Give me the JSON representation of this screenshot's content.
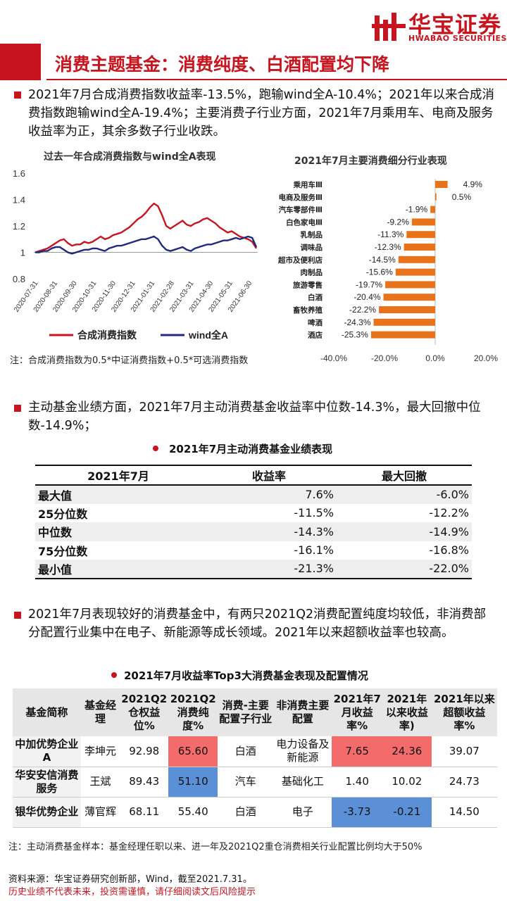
{
  "header": {
    "logo_cn": "华宝证券",
    "logo_en": "HWABAO SECURITIES",
    "title": "消费主题基金：消费纯度、白酒配置均下降"
  },
  "para1": "2021年7月合成消费指数收益率-13.5%，跑输wind全A-10.4%；2021年以来合成消费指数跑输wind全A-19.4%；主要消费子行业方面，2021年7月乘用车、电商及服务收益率为正，其余多数子行业收跌。",
  "para2": "主动基金业绩方面，2021年7月主动消费基金收益率中位数-14.3%，最大回撤中位数-14.9%；",
  "para3": "2021年7月表现较好的消费基金中，有两只2021Q2消费配置纯度均较低，非消费部分配置行业集中在电子、新能源等成长领域。2021年以来超额收益率也较高。",
  "line_chart_title": "过去一年合成消费指数与wind全A表现",
  "bar_chart_title": "2021年7月主要消费细分行业表现",
  "note1": "注：合成消费指数为0.5*中证消费指数+0.5*可选消费指数",
  "colors": {
    "red": "#c8141e",
    "navy": "#1f2a80",
    "orange": "#e8731b"
  },
  "chart_data": [
    {
      "type": "line",
      "title": "过去一年合成消费指数与wind全A表现",
      "ylim": [
        0.8,
        1.6
      ],
      "yticks": [
        "0.8",
        "1",
        "1.2",
        "1.4",
        "1.6"
      ],
      "xticks": [
        "2020-07-31",
        "2020-08-31",
        "2020-09-30",
        "2020-10-31",
        "2020-11-30",
        "2020-12-31",
        "2021-01-31",
        "2021-02-28",
        "2021-03-31",
        "2021-04-30",
        "2021-05-31",
        "2021-06-30"
      ],
      "series": [
        {
          "name": "合成消费指数",
          "color": "#c8141e",
          "values": [
            1.0,
            1.01,
            1.02,
            1.03,
            1.05,
            1.07,
            1.09,
            1.1,
            1.07,
            1.05,
            1.06,
            1.06,
            1.08,
            1.07,
            1.08,
            1.1,
            1.12,
            1.1,
            1.11,
            1.13,
            1.14,
            1.15,
            1.17,
            1.19,
            1.22,
            1.25,
            1.27,
            1.3,
            1.34,
            1.37,
            1.35,
            1.28,
            1.2,
            1.18,
            1.2,
            1.22,
            1.24,
            1.21,
            1.2,
            1.22,
            1.23,
            1.25,
            1.26,
            1.24,
            1.22,
            1.19,
            1.17,
            1.15,
            1.16,
            1.14,
            1.12,
            1.11,
            1.1,
            1.08,
            1.03
          ]
        },
        {
          "name": "wind全A",
          "color": "#1f2a80",
          "values": [
            1.0,
            1.0,
            1.01,
            1.01,
            1.03,
            1.04,
            1.04,
            1.02,
            1.0,
            0.99,
            1.0,
            1.01,
            1.02,
            1.02,
            1.03,
            1.03,
            1.02,
            1.01,
            1.03,
            1.04,
            1.05,
            1.05,
            1.06,
            1.07,
            1.08,
            1.09,
            1.1,
            1.1,
            1.11,
            1.12,
            1.1,
            1.05,
            1.02,
            1.01,
            1.02,
            1.03,
            1.04,
            1.02,
            1.01,
            1.03,
            1.04,
            1.05,
            1.06,
            1.06,
            1.07,
            1.08,
            1.09,
            1.09,
            1.1,
            1.11,
            1.1,
            1.11,
            1.12,
            1.11,
            1.04
          ]
        }
      ]
    },
    {
      "type": "bar",
      "orientation": "horizontal",
      "title": "2021年7月主要消费细分行业表现",
      "categories": [
        "乘用车Ⅲ",
        "电商及服务Ⅲ",
        "汽车零部件Ⅲ",
        "白色家电Ⅲ",
        "乳制品",
        "调味品",
        "超市及便利店",
        "肉制品",
        "旅游零售",
        "白酒",
        "畜牧养殖",
        "啤酒",
        "酒店"
      ],
      "values": [
        4.9,
        0.5,
        -1.9,
        -9.2,
        -11.3,
        -12.3,
        -14.5,
        -15.6,
        -19.7,
        -20.4,
        -22.2,
        -24.3,
        -25.3
      ],
      "value_labels": [
        "4.9%",
        "0.5%",
        "-1.9%",
        "-9.2%",
        "-11.3%",
        "-12.3%",
        "-14.5%",
        "-15.6%",
        "-19.7%",
        "-20.4%",
        "-22.2%",
        "-24.3%",
        "-25.3%"
      ],
      "xlim": [
        -40,
        20
      ],
      "xticks": [
        "-40.0%",
        "-20.0%",
        "0.0%",
        "20.0%"
      ],
      "color": "#e8731b"
    },
    {
      "type": "table",
      "title": "2021年7月主动消费基金业绩表现",
      "columns": [
        "2021年7月",
        "收益率",
        "最大回撤"
      ],
      "rows": [
        [
          "最大值",
          "7.6%",
          "-6.0%"
        ],
        [
          "25分位数",
          "-11.5%",
          "-12.2%"
        ],
        [
          "中位数",
          "-14.3%",
          "-14.9%"
        ],
        [
          "75分位数",
          "-16.1%",
          "-16.8%"
        ],
        [
          "最小值",
          "-21.3%",
          "-22.0%"
        ]
      ]
    },
    {
      "type": "table",
      "title": "2021年7月收益率Top3大消费基金表现及配置情况",
      "columns": [
        "基金简称",
        "基金经理",
        "2021Q2仓权益位%",
        "2021Q2消费纯度%",
        "消费-主要配置子行业",
        "非消费主要配置",
        "2021年7月收益率%",
        "2021年以来收益率)",
        "2021年以来超额收益率%"
      ],
      "rows": [
        [
          "中加优势企业A",
          "李坤元",
          "92.98",
          "65.60",
          "白酒",
          "电力设备及新能源",
          "7.65",
          "24.36",
          "39.07"
        ],
        [
          "华安安信消费服务",
          "王斌",
          "89.43",
          "51.10",
          "汽车",
          "基础化工",
          "1.40",
          "10.02",
          "24.73"
        ],
        [
          "银华优势企业",
          "薄官辉",
          "68.11",
          "55.40",
          "白酒",
          "电子",
          "-3.73",
          "-0.21",
          "14.50"
        ]
      ]
    }
  ],
  "note2": "注：主动消费基金样本：基金经理任职以来、进一年及2021Q2重仓消费相关行业配置比例均大于50%",
  "source": "资料来源：华宝证券研究创新部，Wind，截至2021.7.31。",
  "warning": "历史业绩不代表未来，投资需谨慎，请仔细阅读文后风险提示"
}
